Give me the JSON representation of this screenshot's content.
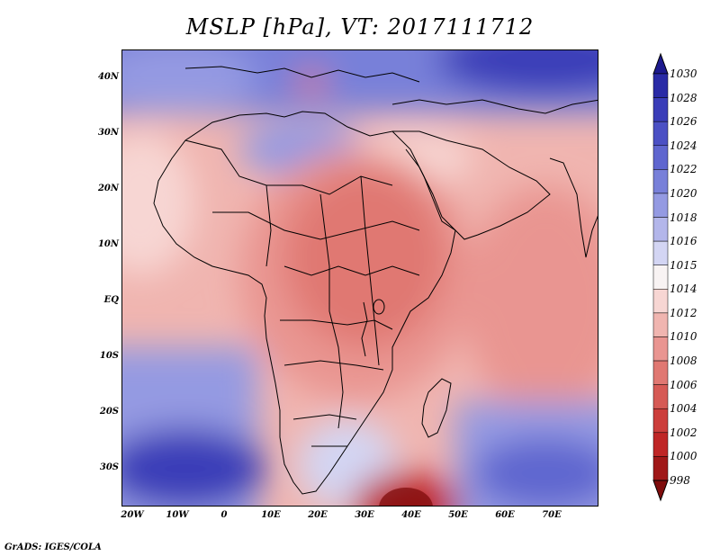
{
  "title": "MSLP [hPa], VT: 2017111712",
  "footer": "GrADS: IGES/COLA",
  "lat_labels": [
    "40N",
    "30N",
    "20N",
    "10N",
    "EQ",
    "10S",
    "20S",
    "30S"
  ],
  "lon_labels": [
    "20W",
    "10W",
    "0",
    "10E",
    "20E",
    "30E",
    "40E",
    "50E",
    "60E",
    "70E"
  ],
  "colorbar": {
    "labels": [
      "1030",
      "1028",
      "1026",
      "1024",
      "1022",
      "1020",
      "1018",
      "1016",
      "1015",
      "1014",
      "1012",
      "1010",
      "1008",
      "1006",
      "1004",
      "1002",
      "1000",
      "998"
    ],
    "colors": [
      "#1d1a8e",
      "#2a2ba6",
      "#3a3db8",
      "#4b50c4",
      "#5f66cf",
      "#7880d9",
      "#949ae2",
      "#b3b6ea",
      "#d3d5f3",
      "#f8f3f3",
      "#f7d6d3",
      "#f0b5b0",
      "#e99591",
      "#e07872",
      "#d65a55",
      "#cc3e3b",
      "#bf2626",
      "#a01818",
      "#7f0c0c"
    ]
  },
  "icons": {
    "colorbar_top": "up-triangle-icon",
    "colorbar_bottom": "down-triangle-icon"
  },
  "colors": {
    "high_pressure": "#2a2ba6",
    "low_pressure": "#a01818",
    "neutral": "#f8f3f3",
    "coastline": "#000000"
  }
}
